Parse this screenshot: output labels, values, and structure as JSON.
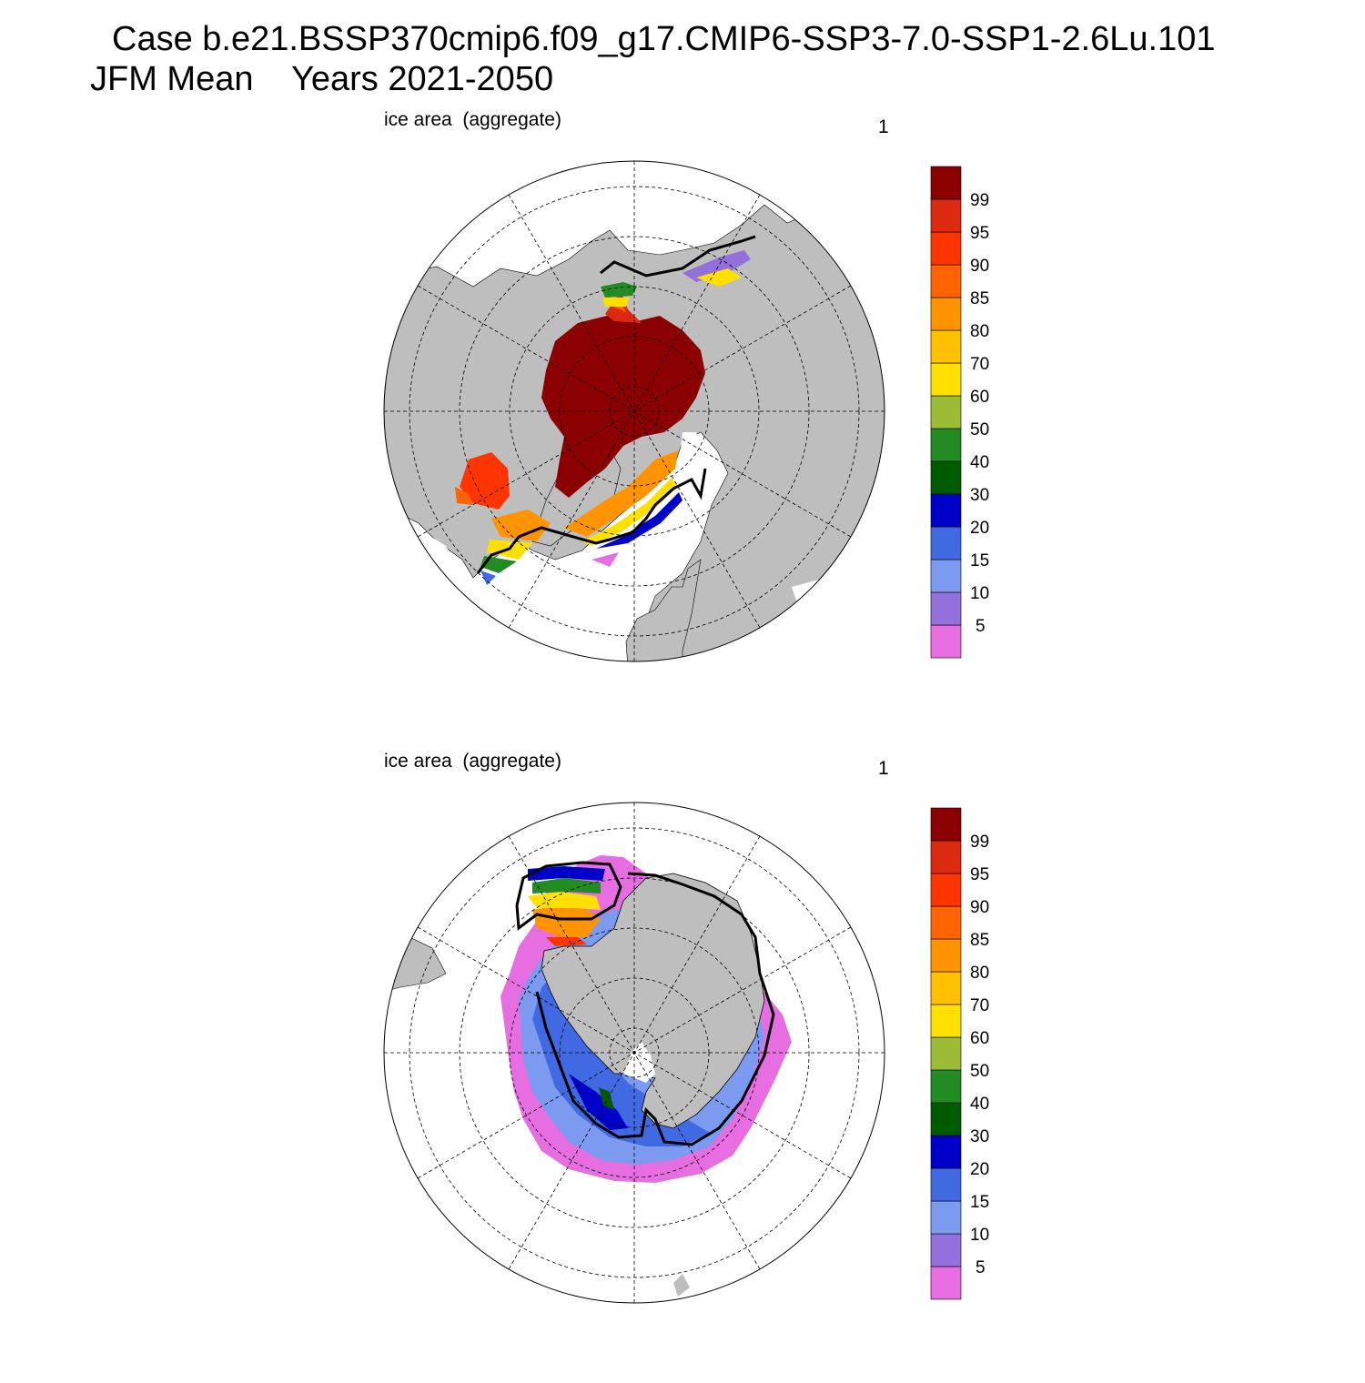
{
  "title": {
    "line1": "Case b.e21.BSSP370cmip6.f09_g17.CMIP6-SSP3-7.0-SSP1-2.6Lu.101",
    "line2": "JFM Mean    Years 2021-2050"
  },
  "colorbar": {
    "colors": [
      "#e66ee0",
      "#9370db",
      "#7b9af0",
      "#4169e1",
      "#0000c8",
      "#005a00",
      "#228b22",
      "#9cbb36",
      "#ffe000",
      "#ffc000",
      "#ff9400",
      "#ff6400",
      "#ff3500",
      "#dc2a10",
      "#8b0000"
    ],
    "tick_labels": [
      "5",
      "10",
      "15",
      "20",
      "30",
      "40",
      "50",
      "60",
      "70",
      "80",
      "85",
      "90",
      "95",
      "99"
    ]
  },
  "panels": [
    {
      "id": "north",
      "left_label": "ice area  (aggregate)",
      "right_label": "1"
    },
    {
      "id": "south",
      "left_label": "ice area  (aggregate)",
      "right_label": "1"
    }
  ]
}
